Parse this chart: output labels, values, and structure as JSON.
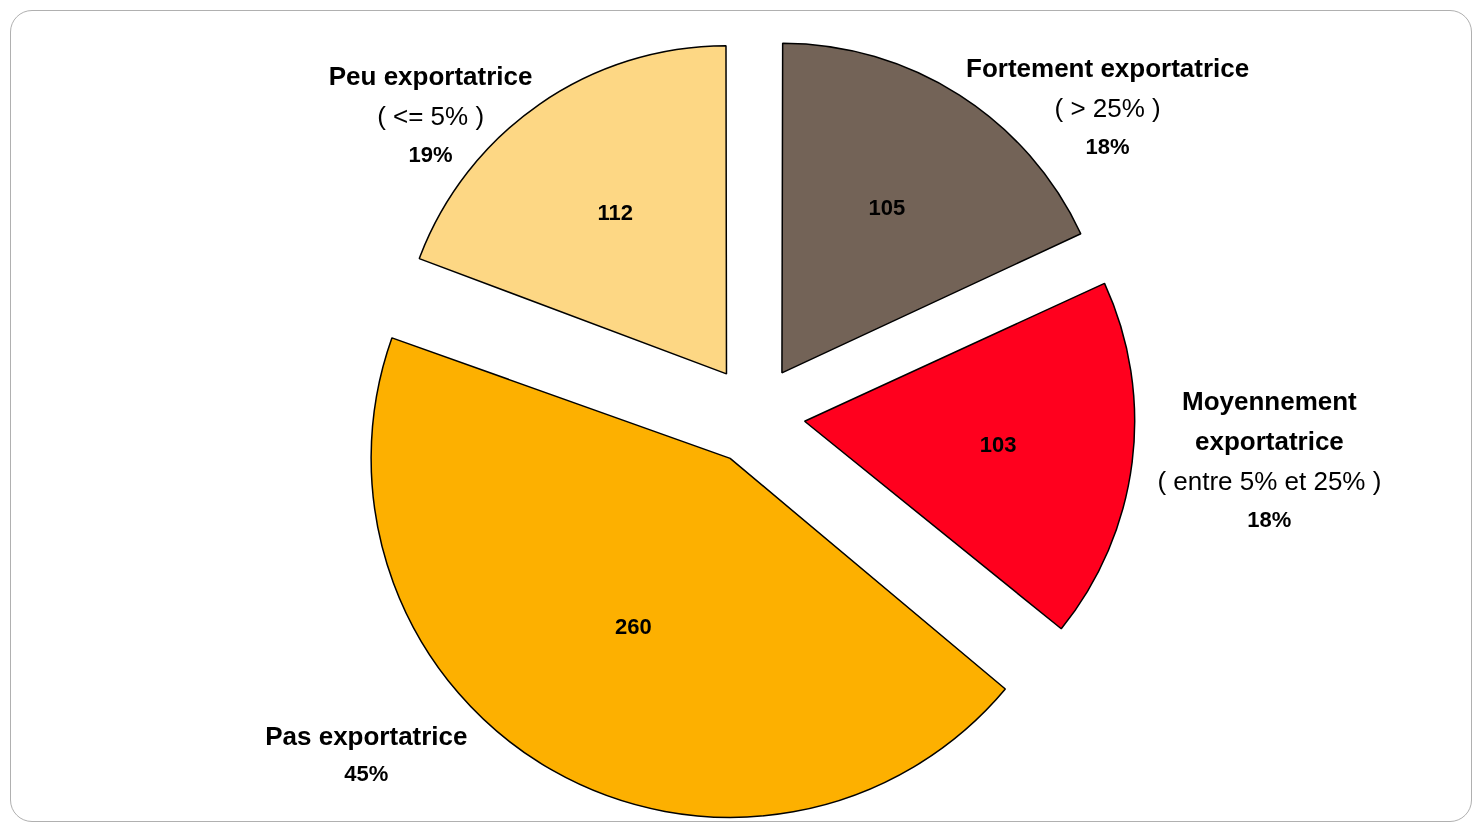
{
  "chart_data": {
    "type": "pie",
    "categories": [
      "Fortement exportatrice\n( > 25% )",
      "Moyennement exportatrice\n( entre 5% et 25% )",
      "Pas exportatrice",
      "Peu exportatrice\n( <= 5% )"
    ],
    "values": [
      105,
      103,
      260,
      112
    ],
    "colors": [
      "#736357",
      "#ff001e",
      "#fdb000",
      "#fdd784"
    ],
    "data_labels": true,
    "annotations": [
      "18%",
      "18%",
      "45%",
      "19%"
    ],
    "legend": false
  }
}
